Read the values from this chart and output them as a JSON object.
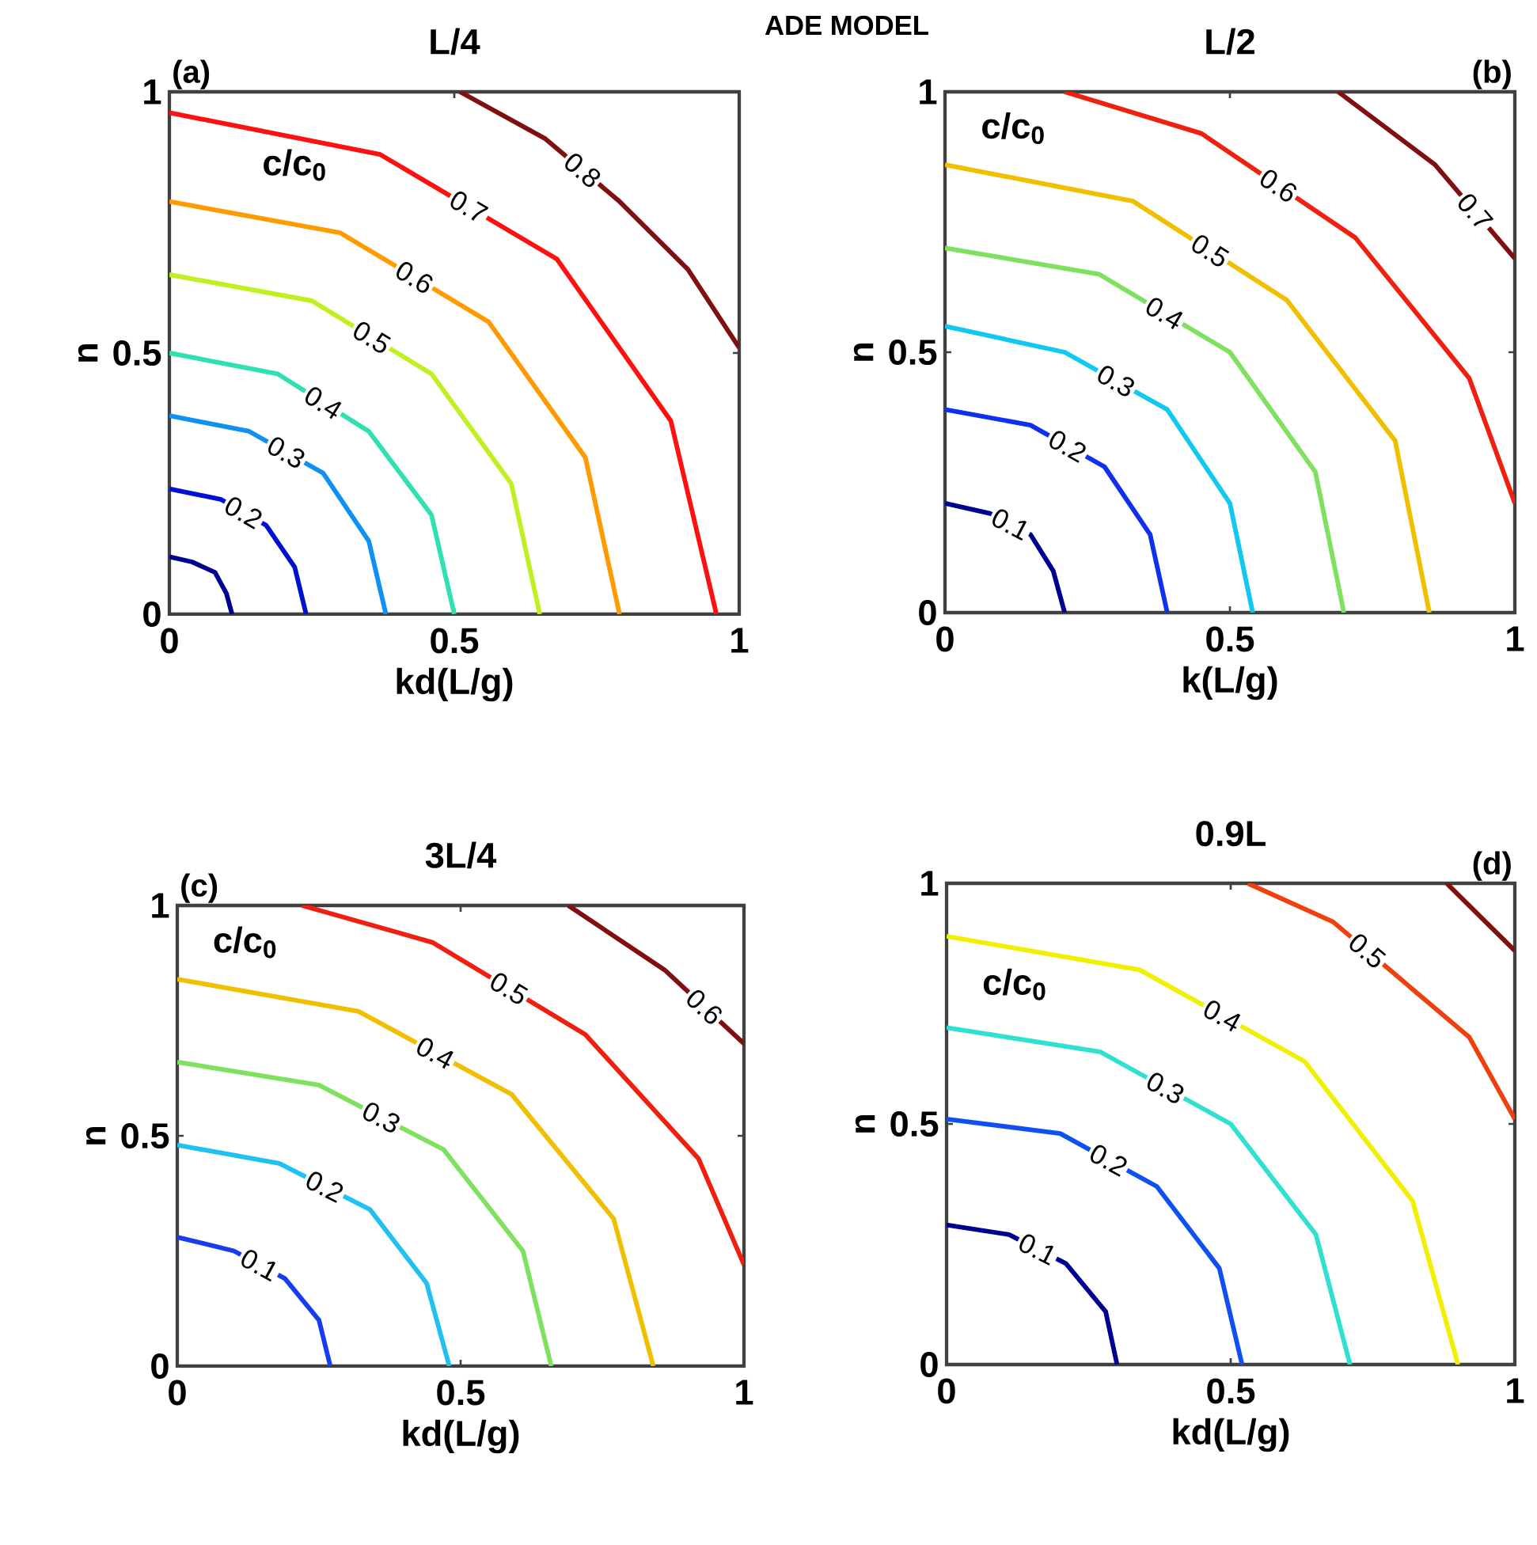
{
  "chart_data": [
    {
      "type": "line",
      "title": "L/4",
      "xlabel": "kd(L/g)",
      "ylabel": "n",
      "xlim": [
        0,
        1
      ],
      "ylim": [
        0,
        1
      ],
      "xticks": [
        0,
        0.5,
        1
      ],
      "yticks": [
        0,
        0.5,
        1
      ],
      "annotations": [
        "(a)",
        "c/c$_{0}$",
        "ADE MODEL"
      ],
      "series": [
        {
          "color": "#000090",
          "x": [
            0,
            0.04,
            0.08,
            0.1,
            0.11
          ],
          "values": [
            0.11,
            0.1,
            0.08,
            0.04,
            0
          ]
        },
        {
          "name": "0.2",
          "color": "#0010d0",
          "x": [
            0,
            0.09,
            0.17,
            0.22,
            0.24
          ],
          "values": [
            0.24,
            0.22,
            0.17,
            0.09,
            0
          ]
        },
        {
          "name": "0.3",
          "color": "#1090f0",
          "x": [
            0,
            0.14,
            0.27,
            0.35,
            0.38
          ],
          "values": [
            0.38,
            0.35,
            0.27,
            0.14,
            0
          ]
        },
        {
          "name": "0.4",
          "color": "#30e0b0",
          "x": [
            0,
            0.19,
            0.35,
            0.46,
            0.5
          ],
          "values": [
            0.5,
            0.46,
            0.35,
            0.19,
            0
          ]
        },
        {
          "name": "0.5",
          "color": "#c0f020",
          "x": [
            0,
            0.25,
            0.46,
            0.6,
            0.65
          ],
          "values": [
            0.65,
            0.6,
            0.46,
            0.25,
            0
          ]
        },
        {
          "name": "0.6",
          "color": "#ff9a00",
          "x": [
            0,
            0.3,
            0.56,
            0.73,
            0.79
          ],
          "values": [
            0.79,
            0.73,
            0.56,
            0.3,
            0
          ]
        },
        {
          "name": "0.7",
          "color": "#ff1010",
          "x": [
            0,
            0.37,
            0.68,
            0.88,
            0.96
          ],
          "values": [
            0.96,
            0.88,
            0.68,
            0.37,
            0
          ]
        },
        {
          "name": "0.8",
          "color": "#801010",
          "x": [
            0.51,
            0.66,
            0.79,
            0.91,
            1
          ],
          "values": [
            1,
            0.91,
            0.79,
            0.66,
            0.51
          ]
        }
      ]
    },
    {
      "type": "line",
      "title": "L/2",
      "xlabel": "k(L/g)",
      "ylabel": "n",
      "xlim": [
        0,
        1
      ],
      "ylim": [
        0,
        1
      ],
      "xticks": [
        0,
        0.5,
        1
      ],
      "yticks": [
        0,
        0.5,
        1
      ],
      "annotations": [
        "(b)",
        "c/c$_{0}$"
      ],
      "series": [
        {
          "name": "0.1",
          "color": "#000090",
          "x": [
            0,
            0.08,
            0.15,
            0.19,
            0.21
          ],
          "values": [
            0.21,
            0.19,
            0.15,
            0.08,
            0
          ]
        },
        {
          "name": "0.2",
          "color": "#1030f0",
          "x": [
            0,
            0.15,
            0.28,
            0.36,
            0.39
          ],
          "values": [
            0.39,
            0.36,
            0.28,
            0.15,
            0
          ]
        },
        {
          "name": "0.3",
          "color": "#10c8f0",
          "x": [
            0,
            0.21,
            0.39,
            0.5,
            0.54
          ],
          "values": [
            0.55,
            0.5,
            0.39,
            0.21,
            0
          ]
        },
        {
          "name": "0.4",
          "color": "#80e060",
          "x": [
            0,
            0.27,
            0.5,
            0.65,
            0.7
          ],
          "values": [
            0.7,
            0.65,
            0.5,
            0.27,
            0
          ]
        },
        {
          "name": "0.5",
          "color": "#f0c000",
          "x": [
            0,
            0.33,
            0.6,
            0.79,
            0.85
          ],
          "values": [
            0.86,
            0.79,
            0.6,
            0.33,
            0
          ]
        },
        {
          "name": "0.6",
          "color": "#f02010",
          "x": [
            0.21,
            0.45,
            0.72,
            0.92,
            1
          ],
          "values": [
            1,
            0.92,
            0.72,
            0.45,
            0.21
          ]
        },
        {
          "name": "0.7",
          "color": "#801010",
          "x": [
            0.69,
            0.86,
            1
          ],
          "values": [
            1,
            0.86,
            0.68
          ]
        }
      ]
    },
    {
      "type": "line",
      "title": "3L/4",
      "xlabel": "kd(L/g)",
      "ylabel": "n",
      "xlim": [
        0,
        1
      ],
      "ylim": [
        0,
        1
      ],
      "xticks": [
        0,
        0.5,
        1
      ],
      "yticks": [
        0,
        0.5,
        1
      ],
      "annotations": [
        "(c)",
        "c/c$_{0}$"
      ],
      "series": [
        {
          "name": "0.1",
          "color": "#1a3cf0",
          "x": [
            0,
            0.1,
            0.19,
            0.25,
            0.27
          ],
          "values": [
            0.28,
            0.25,
            0.19,
            0.1,
            0
          ]
        },
        {
          "name": "0.2",
          "color": "#20c0f0",
          "x": [
            0,
            0.18,
            0.34,
            0.44,
            0.48
          ],
          "values": [
            0.48,
            0.44,
            0.34,
            0.18,
            0
          ]
        },
        {
          "name": "0.3",
          "color": "#80e060",
          "x": [
            0,
            0.25,
            0.47,
            0.61,
            0.66
          ],
          "values": [
            0.66,
            0.61,
            0.47,
            0.25,
            0
          ]
        },
        {
          "name": "0.4",
          "color": "#f0c000",
          "x": [
            0,
            0.32,
            0.59,
            0.77,
            0.84
          ],
          "values": [
            0.84,
            0.77,
            0.59,
            0.32,
            0
          ]
        },
        {
          "name": "0.5",
          "color": "#f02010",
          "x": [
            0.22,
            0.45,
            0.72,
            0.92,
            1
          ],
          "values": [
            1,
            0.92,
            0.72,
            0.45,
            0.22
          ]
        },
        {
          "name": "0.6",
          "color": "#801010",
          "x": [
            0.69,
            0.86,
            1
          ],
          "values": [
            1,
            0.86,
            0.7
          ]
        }
      ]
    },
    {
      "type": "line",
      "title": "0.9L",
      "xlabel": "kd(L/g)",
      "ylabel": "n",
      "xlim": [
        0,
        1
      ],
      "ylim": [
        0,
        1
      ],
      "xticks": [
        0,
        0.5,
        1
      ],
      "yticks": [
        0,
        0.5,
        1
      ],
      "annotations": [
        "(d)",
        "c/c$_{0}$"
      ],
      "series": [
        {
          "name": "0.1",
          "color": "#000090",
          "x": [
            0,
            0.11,
            0.21,
            0.28,
            0.3
          ],
          "values": [
            0.29,
            0.27,
            0.21,
            0.11,
            0
          ]
        },
        {
          "name": "0.2",
          "color": "#1050f0",
          "x": [
            0,
            0.2,
            0.37,
            0.48,
            0.52
          ],
          "values": [
            0.51,
            0.48,
            0.37,
            0.2,
            0
          ]
        },
        {
          "name": "0.3",
          "color": "#30e0d0",
          "x": [
            0,
            0.27,
            0.5,
            0.65,
            0.71
          ],
          "values": [
            0.7,
            0.65,
            0.5,
            0.27,
            0
          ]
        },
        {
          "name": "0.4",
          "color": "#f0f000",
          "x": [
            0,
            0.34,
            0.63,
            0.82,
            0.9
          ],
          "values": [
            0.89,
            0.82,
            0.63,
            0.34,
            0
          ]
        },
        {
          "name": "0.5",
          "color": "#f04010",
          "x": [
            0.53,
            0.68,
            0.8,
            0.92,
            1
          ],
          "values": [
            1,
            0.92,
            0.8,
            0.68,
            0.51
          ]
        },
        {
          "color": "#801010",
          "x": [
            0.88,
            0.94,
            1
          ],
          "values": [
            1,
            0.93,
            0.86
          ]
        }
      ]
    }
  ]
}
